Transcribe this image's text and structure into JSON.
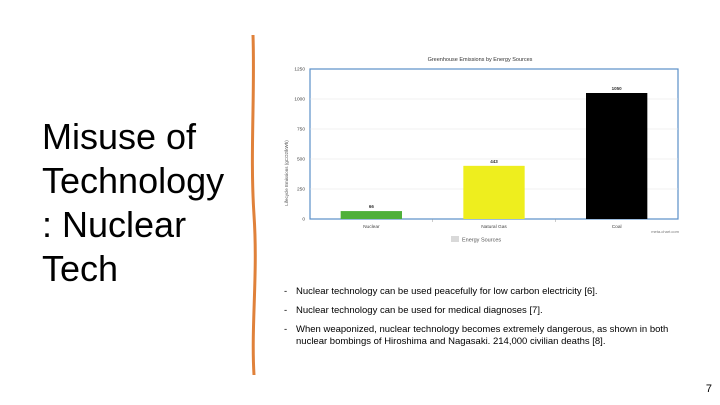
{
  "slide": {
    "title_lines": [
      "Misuse of",
      "Technology",
      ": Nuclear",
      "Tech"
    ],
    "bullets": [
      "Nuclear technology can be used peacefully for low carbon electricity [6].",
      "Nuclear technology can be used for medical diagnoses [7].",
      "When weaponized, nuclear technology becomes extremely dangerous, as shown in both nuclear bombings of Hiroshima and Nagasaki. 214,000 civilian deaths [8]."
    ],
    "page_number": "7",
    "accent_color": "#e0813a"
  },
  "chart_data": {
    "type": "bar",
    "title": "Greenhouse Emissions by Energy Sources",
    "ylabel": "Lifecycle Emissions (gCO2/kWh)",
    "xlabel": "",
    "categories": [
      "Nuclear",
      "Natural Gas",
      "Coal"
    ],
    "values": [
      66,
      443,
      1050
    ],
    "value_labels": [
      "66",
      "443",
      "1050"
    ],
    "colors": [
      "#4fb03a",
      "#eeee1e",
      "#000000"
    ],
    "ylim": [
      0,
      1250
    ],
    "yticks": [
      0,
      250,
      500,
      750,
      1000,
      1250
    ],
    "legend": {
      "label": "Energy Sources",
      "placement": "bottom-center"
    },
    "watermark": "meta-chart.com",
    "grid": true,
    "frame_color": "#5a8fc8"
  }
}
